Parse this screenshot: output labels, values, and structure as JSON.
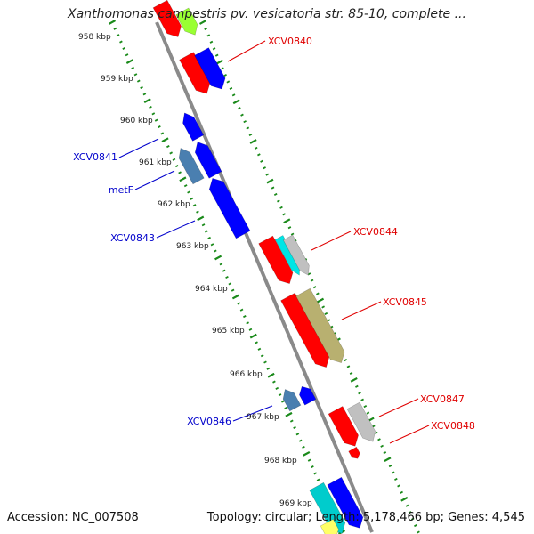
{
  "title": "Xanthomonas campestris pv. vesicatoria str. 85-10, complete ...",
  "accession": "Accession: NC_007508",
  "summary": "Topology: circular; Length: 5,178,466 bp; Genes: 4,545",
  "colors": {
    "backbone": "#8a8a8a",
    "tick_track": "#1a8a1a",
    "forward_label": "#e00000",
    "reverse_label": "#0000cc"
  },
  "kbp_labels": [
    "958 kbp",
    "959 kbp",
    "960 kbp",
    "961 kbp",
    "962 kbp",
    "963 kbp",
    "964 kbp",
    "965 kbp",
    "966 kbp",
    "967 kbp",
    "968 kbp",
    "969 kbp"
  ],
  "forward_gene_labels": [
    "XCV0840",
    "XCV0844",
    "XCV0845",
    "XCV0847",
    "XCV0848"
  ],
  "reverse_gene_labels": [
    "XCV0841",
    "metF",
    "XCV0843",
    "XCV0846"
  ]
}
